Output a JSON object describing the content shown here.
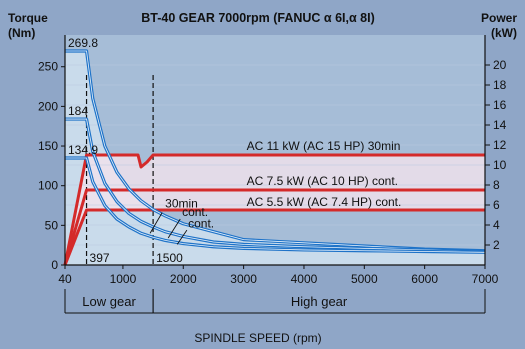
{
  "colors": {
    "background": "#8fa6c7",
    "plot_area": "#a6bdd7",
    "torque_fill": "#cfe1ee",
    "power_band": "#f2e2ec",
    "torque_line": "#1f73c8",
    "power_line": "#d42a2a",
    "marker": "#111111"
  },
  "chart_data": {
    "type": "line",
    "title": "BT-40 GEAR 7000rpm (FANUC α 6I,α 8I)",
    "xlabel": "SPINDLE SPEED (rpm)",
    "ylabel_left": "Torque\n(Nm)",
    "ylabel_left_line1": "Torque",
    "ylabel_left_line2": "(Nm)",
    "ylabel_right_line1": "Power",
    "ylabel_right_line2": "(kW)",
    "xlim": [
      40,
      7000
    ],
    "ylim_left": [
      0,
      290
    ],
    "ylim_right": [
      0,
      23
    ],
    "x_ticks": [
      "40",
      "1000",
      "2000",
      "3000",
      "4000",
      "5000",
      "6000",
      "7000"
    ],
    "x_tick_values": [
      40,
      1000,
      2000,
      3000,
      4000,
      5000,
      6000,
      7000
    ],
    "y_left_ticks": [
      "0",
      "50",
      "100",
      "150",
      "200",
      "250"
    ],
    "y_left_tick_values": [
      0,
      50,
      100,
      150,
      200,
      250
    ],
    "y_right_ticks": [
      "2",
      "4",
      "6",
      "8",
      "10",
      "12",
      "14",
      "16",
      "18",
      "20"
    ],
    "y_right_tick_values": [
      2,
      4,
      6,
      8,
      10,
      12,
      14,
      16,
      18,
      20
    ],
    "gear_ranges": [
      {
        "label": "Low gear",
        "from": 40,
        "to": 1500
      },
      {
        "label": "High gear",
        "from": 1500,
        "to": 7000
      }
    ],
    "markers": [
      {
        "x": 397,
        "label": "397"
      },
      {
        "x": 1500,
        "label": "1500"
      }
    ],
    "torque_levels": [
      {
        "label": "269.8",
        "value": 269.8
      },
      {
        "label": "184",
        "value": 184
      },
      {
        "label": "134.9",
        "value": 134.9
      }
    ],
    "series": [
      {
        "name": "AC 11 kW (AC 15 HP) 30min",
        "kind": "power",
        "x": [
          40,
          397,
          1250,
          1300,
          1400,
          1500,
          7000
        ],
        "y": [
          0,
          11,
          11,
          9.8,
          10.3,
          11,
          11
        ]
      },
      {
        "name": "AC 7.5 kW (AC 10 HP) cont.",
        "kind": "power",
        "x": [
          40,
          397,
          7000
        ],
        "y": [
          0,
          7.5,
          7.5
        ]
      },
      {
        "name": "AC 5.5 kW (AC 7.4 HP) cont.",
        "kind": "power",
        "x": [
          40,
          397,
          7000
        ],
        "y": [
          0,
          5.5,
          5.5
        ]
      },
      {
        "name": "30min",
        "kind": "torque",
        "x": [
          40,
          397,
          500,
          700,
          900,
          1100,
          1300,
          1500,
          1700,
          2000,
          2500,
          3000,
          4000,
          5000,
          6000,
          7000
        ],
        "y": [
          269.8,
          269.8,
          210,
          150,
          117,
          96,
          81,
          70,
          62,
          52,
          42,
          32,
          28,
          24,
          20,
          18
        ]
      },
      {
        "name": "cont.",
        "kind": "torque",
        "x": [
          40,
          397,
          500,
          700,
          900,
          1100,
          1300,
          1500,
          1700,
          2000,
          2500,
          3000,
          4000,
          5000,
          6000,
          7000
        ],
        "y": [
          184,
          184,
          143,
          103,
          80,
          65,
          55,
          48,
          42,
          36,
          29,
          26,
          23,
          21,
          19,
          17
        ]
      },
      {
        "name": "cont.",
        "kind": "torque",
        "x": [
          40,
          397,
          500,
          700,
          900,
          1100,
          1300,
          1500,
          1700,
          2000,
          2500,
          3000,
          4000,
          5000,
          6000,
          7000
        ],
        "y": [
          134.9,
          134.9,
          105,
          75,
          58,
          48,
          40,
          35,
          31,
          27,
          23,
          21,
          19,
          18,
          17,
          16
        ]
      }
    ],
    "legend": "annotations",
    "grid": true
  }
}
